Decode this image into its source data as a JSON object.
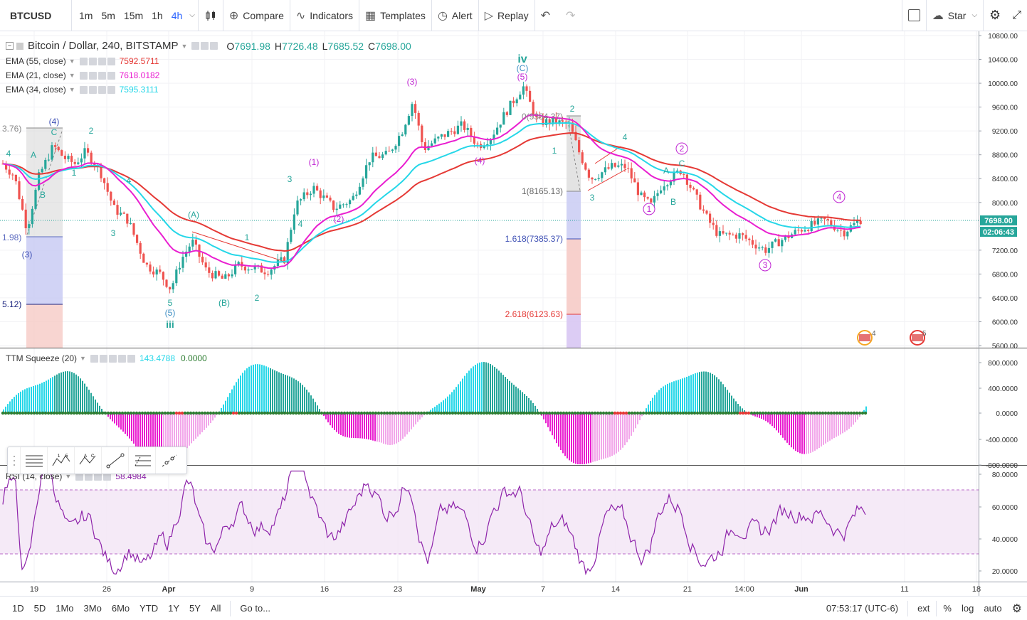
{
  "toolbar": {
    "symbol": "BTCUSD",
    "intervals": [
      "1m",
      "5m",
      "15m",
      "1h",
      "4h"
    ],
    "active_interval": "4h",
    "compare": "Compare",
    "indicators": "Indicators",
    "templates": "Templates",
    "alert": "Alert",
    "replay": "Replay",
    "star": "Star"
  },
  "legend": {
    "title": "Bitcoin / Dollar, 240, BITSTAMP",
    "o_label": "O",
    "o_value": "7691.98",
    "h_label": "H",
    "h_value": "7726.48",
    "l_label": "L",
    "l_value": "7685.52",
    "c_label": "C",
    "c_value": "7698.00",
    "emas": [
      {
        "label": "EMA (55, close)",
        "value": "7592.5711",
        "color": "#e53935"
      },
      {
        "label": "EMA (21, close)",
        "value": "7618.0182",
        "color": "#e91ed0"
      },
      {
        "label": "EMA (34, close)",
        "value": "7595.3111",
        "color": "#26d7e8"
      }
    ],
    "ttm_label": "TTM Squeeze (20)",
    "ttm_value1": "143.4788",
    "ttm_value2": "0.0000",
    "rsi_label": "RSI (14, close)",
    "rsi_value": "58.4984"
  },
  "price_axis": {
    "ticks": [
      "10800.00",
      "10400.00",
      "10000.00",
      "9600.00",
      "9200.00",
      "8800.00",
      "8400.00",
      "8000.00",
      "7200.00",
      "6800.00",
      "6400.00",
      "6000.00",
      "5600.00"
    ],
    "last_price": "7698.00",
    "countdown": "02:06:43"
  },
  "ttm_axis": {
    "ticks": [
      "800.0000",
      "400.0000",
      "0.0000",
      "-400.0000",
      "-800.0000"
    ]
  },
  "rsi_axis": {
    "ticks": [
      "80.0000",
      "60.0000",
      "40.0000",
      "20.0000"
    ]
  },
  "time_axis": {
    "ticks": [
      "19",
      "26",
      "Apr",
      "9",
      "16",
      "23",
      "May",
      "7",
      "14",
      "21",
      "14:00",
      "Jun",
      "11",
      "18"
    ]
  },
  "fib_labels": {
    "left_top": "3.76)",
    "left_mid": "1.98)",
    "left_bot": "5.12)",
    "r_zero": "0(9384.37)",
    "r_one": "1(8165.13)",
    "r_1618": "1.618(7385.37)",
    "r_2618": "2.618(6123.63)"
  },
  "wave_labels": {
    "iv": "iv",
    "iii": "iii",
    "c_paren": "(C)",
    "five_paren": "(5)",
    "three_paren": "(3)",
    "four_paren": "(4)",
    "a_paren": "(A)",
    "b_paren": "(B)",
    "one_paren": "(1)",
    "two_paren": "(2)",
    "n1": "1",
    "n2": "2",
    "n3": "3",
    "n4": "4",
    "n5": "5",
    "A": "A",
    "B": "B",
    "C": "C",
    "c1": "1",
    "c2": "2",
    "c3": "3",
    "c4": "4"
  },
  "events": {
    "e4": "4",
    "e5": "5"
  },
  "bottom": {
    "ranges": [
      "1D",
      "5D",
      "1Mo",
      "3Mo",
      "6Mo",
      "YTD",
      "1Y",
      "5Y",
      "All"
    ],
    "goto": "Go to...",
    "clock": "07:53:17 (UTC-6)",
    "ext": "ext",
    "percent": "%",
    "log": "log",
    "auto": "auto"
  },
  "colors": {
    "up": "#26a69a",
    "down": "#ef5350",
    "ema55": "#e53935",
    "ema21": "#e91ed0",
    "ema34": "#26d7e8",
    "rsi": "#8e24aa",
    "wave_teal": "#26a69a",
    "wave_magenta": "#c026d3"
  }
}
